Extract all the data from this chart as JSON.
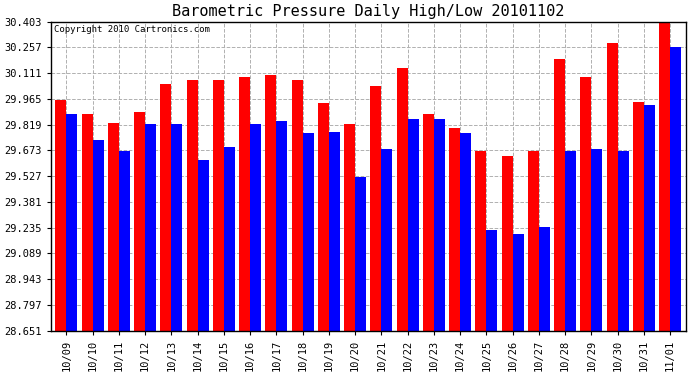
{
  "title": "Barometric Pressure Daily High/Low 20101102",
  "copyright": "Copyright 2010 Cartronics.com",
  "dates": [
    "10/09",
    "10/10",
    "10/11",
    "10/12",
    "10/13",
    "10/14",
    "10/15",
    "10/16",
    "10/17",
    "10/18",
    "10/19",
    "10/20",
    "10/21",
    "10/22",
    "10/23",
    "10/24",
    "10/25",
    "10/26",
    "10/27",
    "10/28",
    "10/29",
    "10/30",
    "10/31",
    "11/01"
  ],
  "highs": [
    29.96,
    29.88,
    29.83,
    29.89,
    30.05,
    30.07,
    30.07,
    30.09,
    30.1,
    30.07,
    29.94,
    29.82,
    30.04,
    30.14,
    29.88,
    29.8,
    29.67,
    29.64,
    29.67,
    30.19,
    30.09,
    30.28,
    29.95,
    30.41
  ],
  "lows": [
    29.88,
    29.73,
    29.67,
    29.82,
    29.82,
    29.62,
    29.69,
    29.82,
    29.84,
    29.77,
    29.78,
    29.52,
    29.68,
    29.85,
    29.85,
    29.77,
    29.22,
    29.2,
    29.24,
    29.67,
    29.68,
    29.67,
    29.93,
    30.26
  ],
  "high_color": "#ff0000",
  "low_color": "#0000ff",
  "bg_color": "#ffffff",
  "plot_bg_color": "#ffffff",
  "grid_color": "#b0b0b0",
  "yticks": [
    28.651,
    28.797,
    28.943,
    29.089,
    29.235,
    29.381,
    29.527,
    29.673,
    29.819,
    29.965,
    30.111,
    30.257,
    30.403
  ],
  "ymin": 28.651,
  "ymax": 30.403,
  "bar_width": 0.42,
  "title_fontsize": 11
}
